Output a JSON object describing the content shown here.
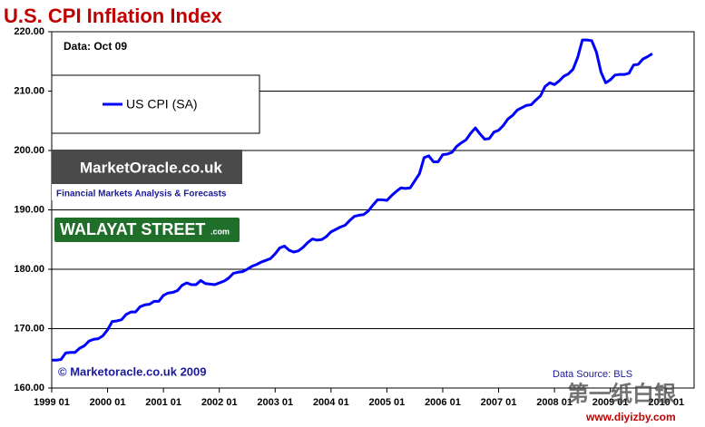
{
  "chart_data": {
    "type": "line",
    "title": "U.S. CPI Inflation Index",
    "annotations": {
      "data_note": "Data: Oct 09",
      "copyright": "© Marketoracle.co.uk  2009",
      "source": "Data Source: BLS"
    },
    "logos": {
      "market_oracle": "MarketOracle.co.uk",
      "tagline": "Financial Markets Analysis & Forecasts",
      "walayat": "WALAYAT STREET",
      "walayat_suffix": ".com"
    },
    "watermark": {
      "cn": "第一纸白银",
      "url": "www.diyizby.com"
    },
    "x": [
      "1999 01",
      "1999 02",
      "1999 03",
      "1999 04",
      "1999 05",
      "1999 06",
      "1999 07",
      "1999 08",
      "1999 09",
      "1999 10",
      "1999 11",
      "1999 12",
      "2000 01",
      "2000 02",
      "2000 03",
      "2000 04",
      "2000 05",
      "2000 06",
      "2000 07",
      "2000 08",
      "2000 09",
      "2000 10",
      "2000 11",
      "2000 12",
      "2001 01",
      "2001 02",
      "2001 03",
      "2001 04",
      "2001 05",
      "2001 06",
      "2001 07",
      "2001 08",
      "2001 09",
      "2001 10",
      "2001 11",
      "2001 12",
      "2002 01",
      "2002 02",
      "2002 03",
      "2002 04",
      "2002 05",
      "2002 06",
      "2002 07",
      "2002 08",
      "2002 09",
      "2002 10",
      "2002 11",
      "2002 12",
      "2003 01",
      "2003 02",
      "2003 03",
      "2003 04",
      "2003 05",
      "2003 06",
      "2003 07",
      "2003 08",
      "2003 09",
      "2003 10",
      "2003 11",
      "2003 12",
      "2004 01",
      "2004 02",
      "2004 03",
      "2004 04",
      "2004 05",
      "2004 06",
      "2004 07",
      "2004 08",
      "2004 09",
      "2004 10",
      "2004 11",
      "2004 12",
      "2005 01",
      "2005 02",
      "2005 03",
      "2005 04",
      "2005 05",
      "2005 06",
      "2005 07",
      "2005 08",
      "2005 09",
      "2005 10",
      "2005 11",
      "2005 12",
      "2006 01",
      "2006 02",
      "2006 03",
      "2006 04",
      "2006 05",
      "2006 06",
      "2006 07",
      "2006 08",
      "2006 09",
      "2006 10",
      "2006 11",
      "2006 12",
      "2007 01",
      "2007 02",
      "2007 03",
      "2007 04",
      "2007 05",
      "2007 06",
      "2007 07",
      "2007 08",
      "2007 09",
      "2007 10",
      "2007 11",
      "2007 12",
      "2008 01",
      "2008 02",
      "2008 03",
      "2008 04",
      "2008 05",
      "2008 06",
      "2008 07",
      "2008 08",
      "2008 09",
      "2008 10",
      "2008 11",
      "2008 12",
      "2009 01",
      "2009 02",
      "2009 03",
      "2009 04",
      "2009 05",
      "2009 06",
      "2009 07",
      "2009 08",
      "2009 09",
      "2009 10"
    ],
    "series": [
      {
        "name": "US CPI (SA)",
        "color": "#0000ff",
        "values": [
          164.7,
          164.7,
          164.8,
          165.9,
          166.0,
          166.0,
          166.7,
          167.1,
          167.9,
          168.2,
          168.3,
          168.8,
          169.8,
          171.2,
          171.3,
          171.5,
          172.4,
          172.8,
          172.8,
          173.7,
          174.0,
          174.1,
          174.6,
          174.6,
          175.6,
          176.0,
          176.1,
          176.4,
          177.3,
          177.7,
          177.4,
          177.4,
          178.1,
          177.6,
          177.5,
          177.4,
          177.7,
          178.0,
          178.5,
          179.3,
          179.5,
          179.6,
          180.0,
          180.5,
          180.8,
          181.2,
          181.5,
          181.8,
          182.6,
          183.6,
          183.9,
          183.2,
          182.9,
          183.1,
          183.7,
          184.5,
          185.1,
          184.9,
          185.0,
          185.5,
          186.3,
          186.7,
          187.1,
          187.4,
          188.2,
          188.9,
          189.1,
          189.2,
          189.8,
          190.8,
          191.7,
          191.7,
          191.6,
          192.4,
          193.1,
          193.7,
          193.6,
          193.7,
          194.9,
          196.1,
          198.8,
          199.1,
          198.1,
          198.1,
          199.3,
          199.4,
          199.7,
          200.7,
          201.3,
          201.8,
          202.9,
          203.8,
          202.8,
          201.9,
          202.0,
          203.1,
          203.4,
          204.2,
          205.3,
          205.9,
          206.8,
          207.2,
          207.6,
          207.7,
          208.5,
          209.2,
          210.8,
          211.4,
          211.1,
          211.7,
          212.5,
          212.9,
          213.7,
          215.7,
          218.6,
          218.6,
          218.5,
          216.6,
          213.2,
          211.4,
          211.9,
          212.7,
          212.8,
          212.8,
          213.0,
          214.4,
          214.5,
          215.4,
          215.8,
          216.3
        ]
      }
    ],
    "xlim": [
      "1999 01",
      "2010 07"
    ],
    "xticks": [
      "1999 01",
      "2000 01",
      "2001 01",
      "2002 01",
      "2003 01",
      "2004 01",
      "2005 01",
      "2006 01",
      "2007 01",
      "2008 01",
      "2009 01",
      "2010 01"
    ],
    "ylim": [
      160,
      220
    ],
    "yticks": [
      {
        "value": 160,
        "label": "160.00"
      },
      {
        "value": 170,
        "label": "170.00"
      },
      {
        "value": 180,
        "label": "180.00"
      },
      {
        "value": 190,
        "label": "190.00"
      },
      {
        "value": 200,
        "label": "200.00"
      },
      {
        "value": 210,
        "label": "210.00"
      },
      {
        "value": 220,
        "label": "220.00"
      }
    ],
    "grid": true
  }
}
